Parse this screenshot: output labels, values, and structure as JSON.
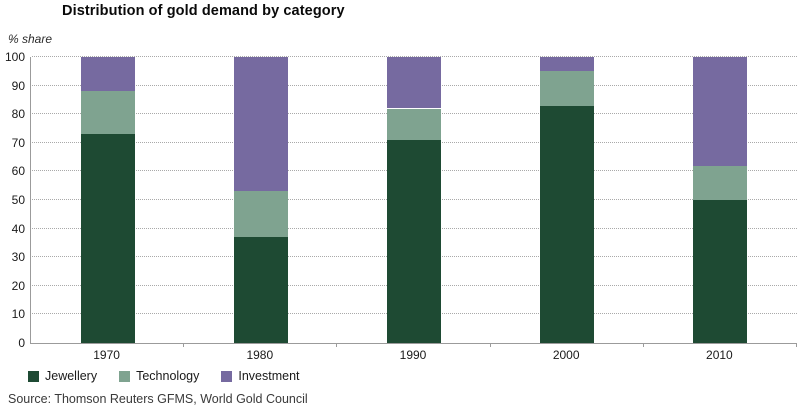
{
  "title": "Distribution of gold demand by category",
  "source": "Source: Thomson Reuters GFMS, World Gold Council",
  "colors": {
    "jewellery": "#1E4A33",
    "technology": "#7FA390",
    "investment": "#766AA0",
    "axis_line": "#9b9b9b",
    "gridline": "#a9a9a9"
  },
  "chart_data": {
    "type": "bar",
    "stacked": true,
    "title": "Distribution of gold demand by category",
    "ylabel": "% share",
    "xlabel": "",
    "categories": [
      "1970",
      "1980",
      "1990",
      "2000",
      "2010"
    ],
    "series": [
      {
        "name": "Jewellery",
        "color": "#1E4A33",
        "values": [
          73,
          37,
          71,
          83,
          50
        ]
      },
      {
        "name": "Technology",
        "color": "#7FA390",
        "values": [
          15,
          16,
          11,
          12,
          12
        ]
      },
      {
        "name": "Investment",
        "color": "#766AA0",
        "values": [
          12,
          47,
          18,
          5,
          38
        ]
      }
    ],
    "ylim": [
      0,
      100
    ],
    "ytick_interval": 10,
    "grid": "horizontal-dotted",
    "legend_position": "bottom-left"
  }
}
